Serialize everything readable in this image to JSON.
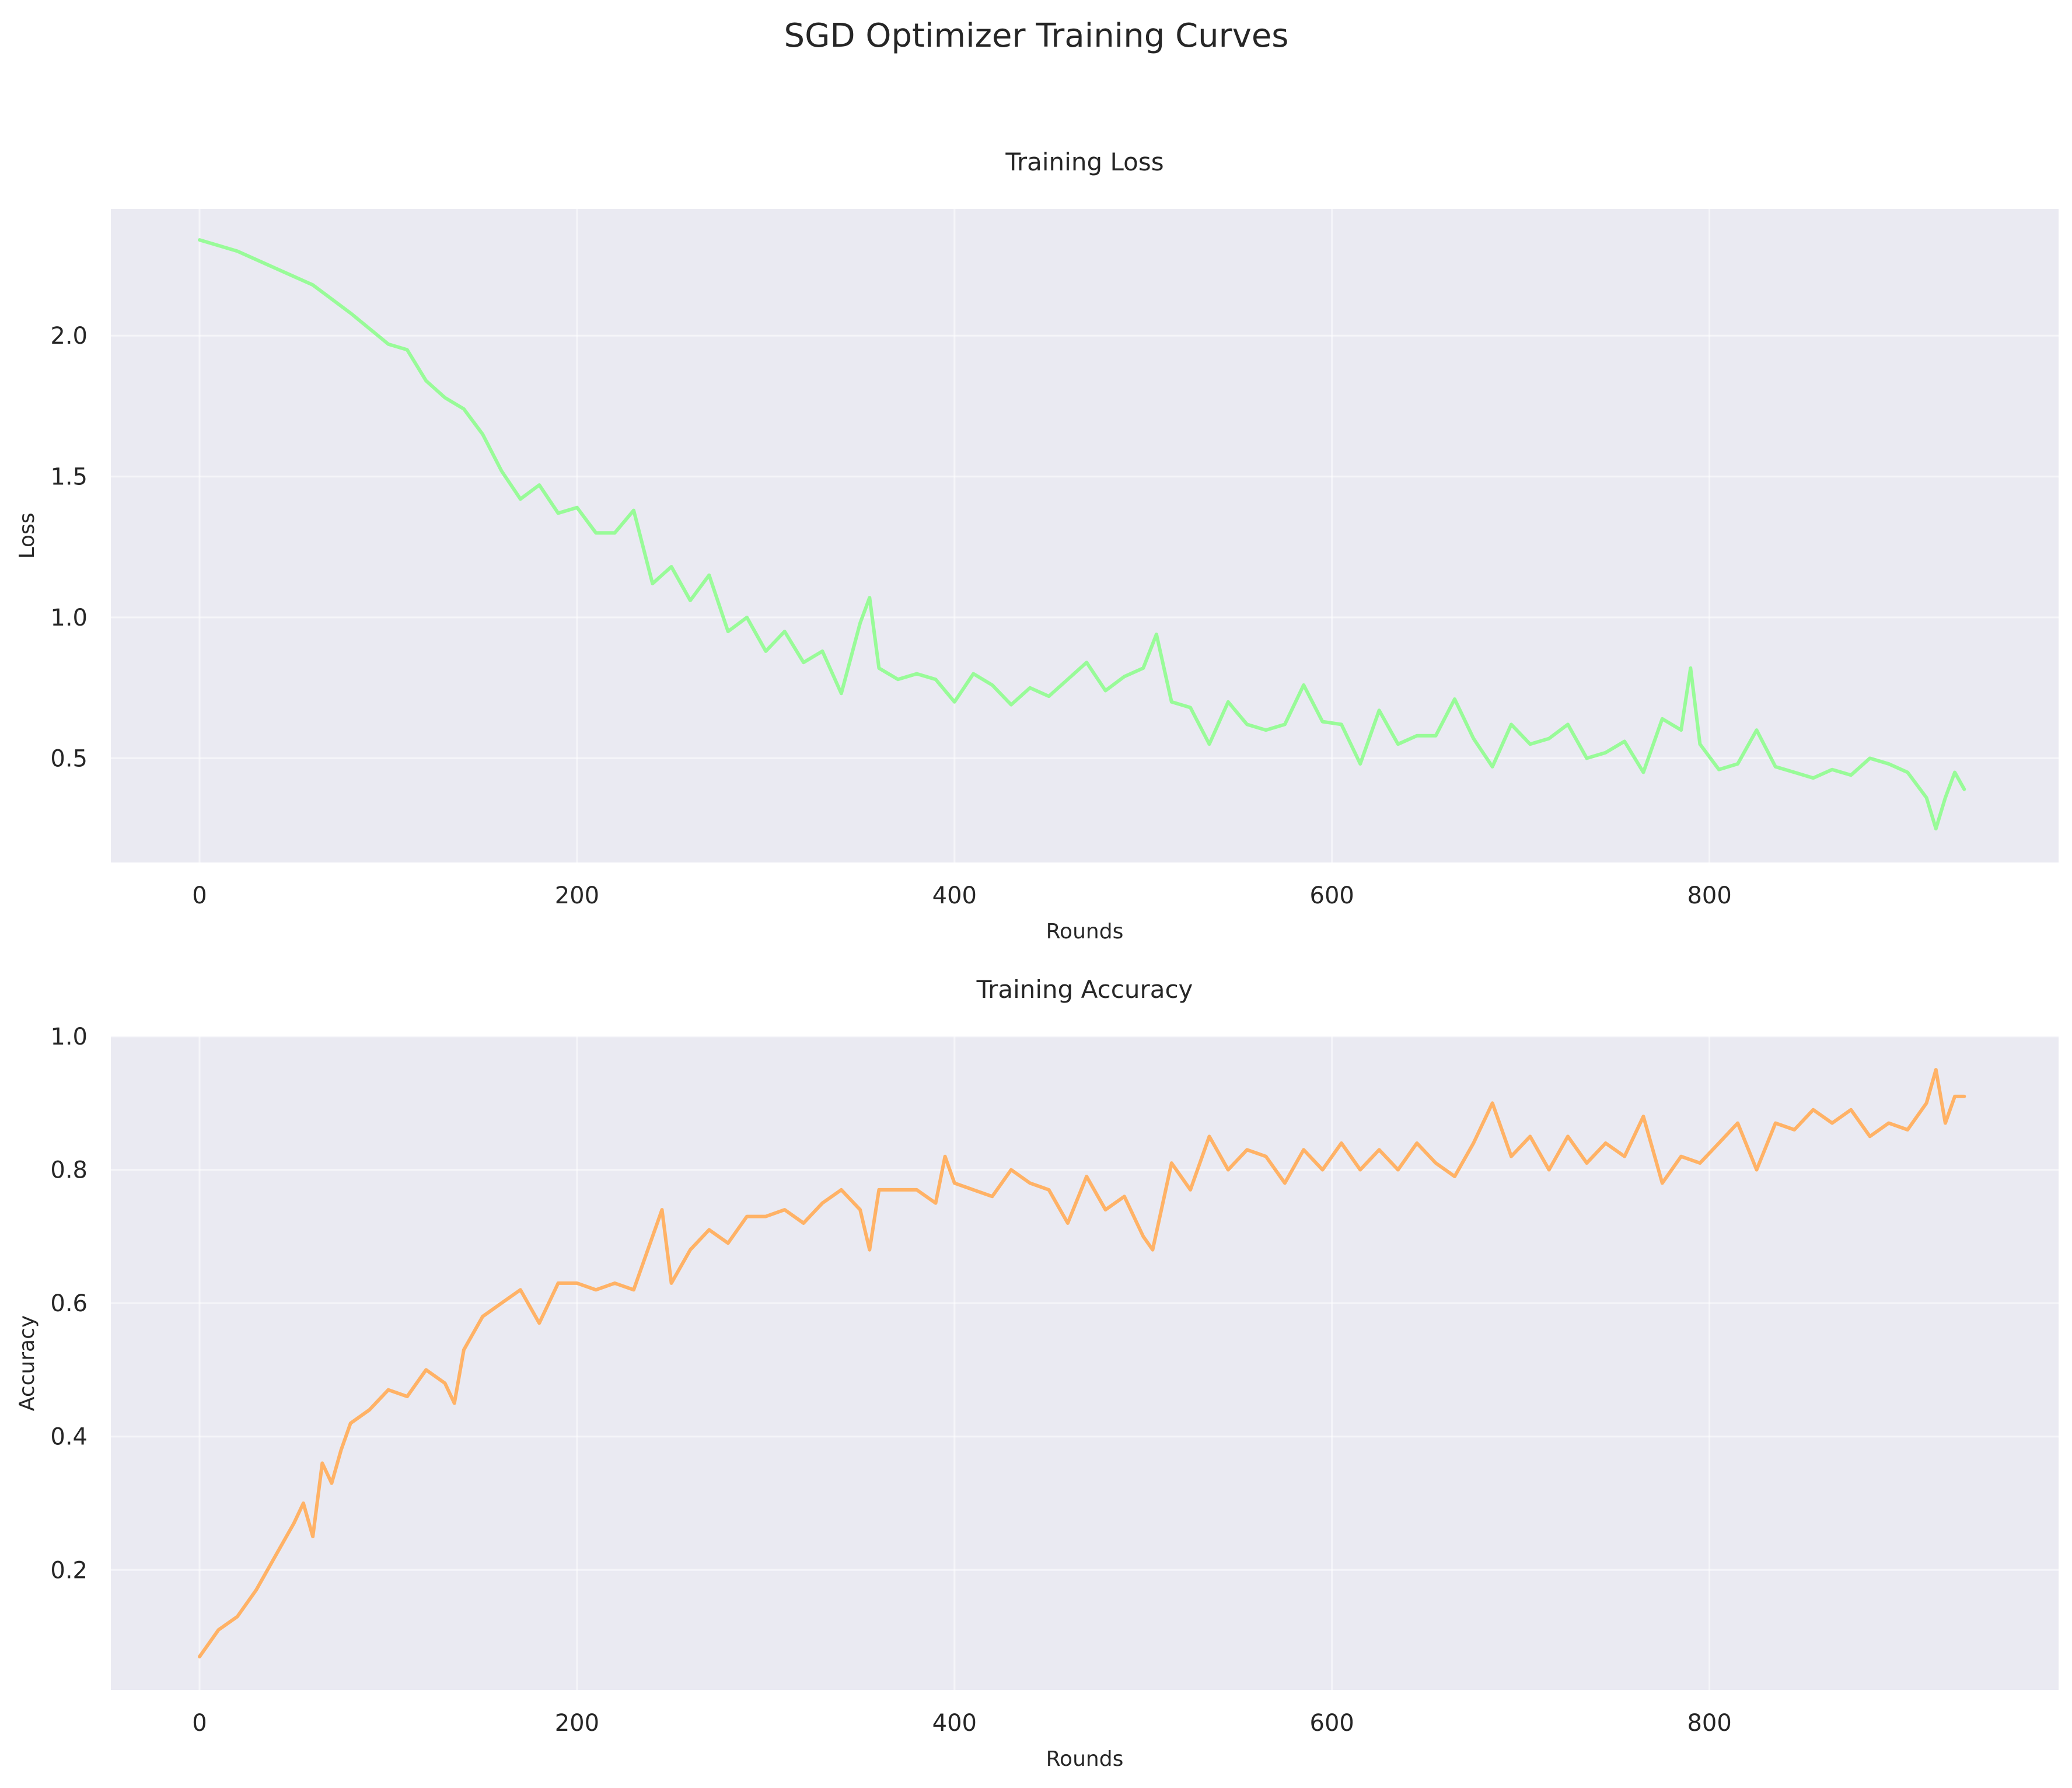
{
  "figure": {
    "title": "SGD Optimizer Training Curves"
  },
  "chart_data": [
    {
      "type": "line",
      "title": "Training Loss",
      "xlabel": "Rounds",
      "ylabel": "Loss",
      "xlim": [
        -47,
        985
      ],
      "ylim": [
        0.13,
        2.45
      ],
      "xticks": [
        0,
        200,
        400,
        600,
        800
      ],
      "yticks": [
        0.5,
        1.0,
        1.5,
        2.0
      ],
      "ytick_labels": [
        "0.5",
        "1.0",
        "1.5",
        "2.0"
      ],
      "grid": true,
      "color": "#98fb98",
      "series": [
        {
          "x": [
            0,
            20,
            40,
            60,
            80,
            100,
            110,
            120,
            130,
            140,
            150,
            160,
            170,
            180,
            190,
            200,
            210,
            220,
            230,
            240,
            250,
            260,
            270,
            280,
            290,
            300,
            310,
            320,
            330,
            340,
            350,
            355,
            360,
            370,
            380,
            390,
            400,
            410,
            420,
            430,
            440,
            450,
            460,
            470,
            480,
            490,
            500,
            507,
            515,
            525,
            535,
            545,
            555,
            565,
            575,
            585,
            595,
            605,
            615,
            625,
            635,
            645,
            655,
            665,
            675,
            685,
            695,
            705,
            715,
            725,
            735,
            745,
            755,
            765,
            775,
            785,
            790,
            795,
            805,
            815,
            825,
            835,
            845,
            855,
            865,
            875,
            885,
            895,
            905,
            915,
            920,
            925,
            930,
            935
          ],
          "y": [
            2.34,
            2.3,
            2.24,
            2.18,
            2.08,
            1.97,
            1.95,
            1.84,
            1.78,
            1.74,
            1.65,
            1.52,
            1.42,
            1.47,
            1.37,
            1.39,
            1.3,
            1.3,
            1.38,
            1.12,
            1.18,
            1.06,
            1.15,
            0.95,
            1.0,
            0.88,
            0.95,
            0.84,
            0.88,
            0.73,
            0.98,
            1.07,
            0.82,
            0.78,
            0.8,
            0.78,
            0.7,
            0.8,
            0.76,
            0.69,
            0.75,
            0.72,
            0.78,
            0.84,
            0.74,
            0.79,
            0.82,
            0.94,
            0.7,
            0.68,
            0.55,
            0.7,
            0.62,
            0.6,
            0.62,
            0.76,
            0.63,
            0.62,
            0.48,
            0.67,
            0.55,
            0.58,
            0.58,
            0.71,
            0.57,
            0.47,
            0.62,
            0.55,
            0.57,
            0.62,
            0.5,
            0.52,
            0.56,
            0.45,
            0.64,
            0.6,
            0.82,
            0.55,
            0.46,
            0.48,
            0.6,
            0.47,
            0.45,
            0.43,
            0.46,
            0.44,
            0.5,
            0.48,
            0.45,
            0.36,
            0.25,
            0.36,
            0.45,
            0.39
          ]
        }
      ]
    },
    {
      "type": "line",
      "title": "Training Accuracy",
      "xlabel": "Rounds",
      "ylabel": "Accuracy",
      "xlim": [
        -47,
        985
      ],
      "ylim": [
        0.02,
        1.0
      ],
      "xticks": [
        0,
        200,
        400,
        600,
        800
      ],
      "yticks": [
        0.2,
        0.4,
        0.6,
        0.8,
        1.0
      ],
      "ytick_labels": [
        "0.2",
        "0.4",
        "0.6",
        "0.8",
        "1.0"
      ],
      "grid": true,
      "color": "#ffb266",
      "series": [
        {
          "x": [
            0,
            10,
            20,
            30,
            40,
            50,
            55,
            60,
            65,
            70,
            75,
            80,
            90,
            100,
            110,
            120,
            130,
            135,
            140,
            150,
            160,
            170,
            180,
            190,
            200,
            210,
            220,
            230,
            240,
            245,
            250,
            260,
            270,
            280,
            290,
            300,
            310,
            320,
            330,
            340,
            350,
            355,
            360,
            370,
            380,
            390,
            395,
            400,
            410,
            420,
            430,
            440,
            450,
            460,
            470,
            480,
            490,
            500,
            505,
            515,
            525,
            535,
            545,
            555,
            565,
            575,
            585,
            595,
            605,
            615,
            625,
            635,
            645,
            655,
            665,
            675,
            685,
            695,
            705,
            715,
            725,
            735,
            745,
            755,
            765,
            775,
            785,
            795,
            805,
            815,
            825,
            835,
            845,
            855,
            865,
            875,
            885,
            895,
            905,
            915,
            920,
            925,
            930,
            935
          ],
          "y": [
            0.07,
            0.11,
            0.13,
            0.17,
            0.22,
            0.27,
            0.3,
            0.25,
            0.36,
            0.33,
            0.38,
            0.42,
            0.44,
            0.47,
            0.46,
            0.5,
            0.48,
            0.45,
            0.53,
            0.58,
            0.6,
            0.62,
            0.57,
            0.63,
            0.63,
            0.62,
            0.63,
            0.62,
            0.7,
            0.74,
            0.63,
            0.68,
            0.71,
            0.69,
            0.73,
            0.73,
            0.74,
            0.72,
            0.75,
            0.77,
            0.74,
            0.68,
            0.77,
            0.77,
            0.77,
            0.75,
            0.82,
            0.78,
            0.77,
            0.76,
            0.8,
            0.78,
            0.77,
            0.72,
            0.79,
            0.74,
            0.76,
            0.7,
            0.68,
            0.81,
            0.77,
            0.85,
            0.8,
            0.83,
            0.82,
            0.78,
            0.83,
            0.8,
            0.84,
            0.8,
            0.83,
            0.8,
            0.84,
            0.81,
            0.79,
            0.84,
            0.9,
            0.82,
            0.85,
            0.8,
            0.85,
            0.81,
            0.84,
            0.82,
            0.88,
            0.78,
            0.82,
            0.81,
            0.84,
            0.87,
            0.8,
            0.87,
            0.86,
            0.89,
            0.87,
            0.89,
            0.85,
            0.87,
            0.86,
            0.9,
            0.95,
            0.87,
            0.91,
            0.91
          ]
        }
      ]
    }
  ]
}
